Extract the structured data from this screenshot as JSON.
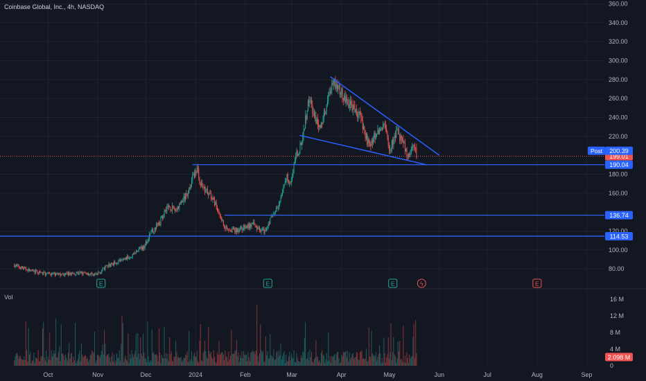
{
  "header": {
    "title": "Coinbase Global, Inc., 4h, NASDAQ"
  },
  "chart_data": {
    "type": "candlestick",
    "title": "Coinbase Global, Inc., 4h, NASDAQ",
    "price_axis": {
      "ticks": [
        "360.00",
        "340.00",
        "320.00",
        "300.00",
        "280.00",
        "260.00",
        "240.00",
        "220.00",
        "180.00",
        "160.00",
        "120.00",
        "100.00",
        "80.00"
      ],
      "tick_values": [
        360,
        340,
        320,
        300,
        280,
        260,
        240,
        220,
        180,
        160,
        120,
        100,
        80
      ],
      "range": [
        64,
        364
      ]
    },
    "volume_axis": {
      "label": "Vol",
      "ticks": [
        "16 M",
        "12 M",
        "8 M",
        "4 M",
        "0"
      ],
      "tick_values": [
        16,
        12,
        8,
        4,
        0
      ],
      "range_millions": [
        0,
        18
      ]
    },
    "time_axis": {
      "ticks": [
        "Oct",
        "Nov",
        "Dec",
        "2024",
        "Feb",
        "Mar",
        "Apr",
        "May",
        "Jun",
        "Jul",
        "Aug",
        "Sep"
      ],
      "tick_dates": [
        "2023-10-01",
        "2023-11-01",
        "2023-12-01",
        "2024-01-01",
        "2024-02-01",
        "2024-03-01",
        "2024-04-01",
        "2024-05-01",
        "2024-06-01",
        "2024-07-01",
        "2024-08-01",
        "2024-09-01"
      ]
    },
    "price_keypoints": [
      [
        "2023-09-10",
        84
      ],
      [
        "2023-09-20",
        78
      ],
      [
        "2023-09-28",
        75
      ],
      [
        "2023-10-10",
        74
      ],
      [
        "2023-10-20",
        76
      ],
      [
        "2023-10-31",
        74
      ],
      [
        "2023-11-08",
        84
      ],
      [
        "2023-11-20",
        92
      ],
      [
        "2023-11-30",
        104
      ],
      [
        "2023-12-04",
        118
      ],
      [
        "2023-12-10",
        130
      ],
      [
        "2023-12-14",
        146
      ],
      [
        "2023-12-20",
        142
      ],
      [
        "2023-12-27",
        160
      ],
      [
        "2023-12-30",
        176
      ],
      [
        "2024-01-02",
        186
      ],
      [
        "2024-01-04",
        170
      ],
      [
        "2024-01-10",
        158
      ],
      [
        "2024-01-14",
        146
      ],
      [
        "2024-01-19",
        125
      ],
      [
        "2024-01-25",
        120
      ],
      [
        "2024-02-01",
        124
      ],
      [
        "2024-02-06",
        127
      ],
      [
        "2024-02-10",
        122
      ],
      [
        "2024-02-13",
        120
      ],
      [
        "2024-02-17",
        133
      ],
      [
        "2024-02-22",
        148
      ],
      [
        "2024-02-27",
        178
      ],
      [
        "2024-02-29",
        171
      ],
      [
        "2024-03-04",
        200
      ],
      [
        "2024-03-07",
        212
      ],
      [
        "2024-03-12",
        262
      ],
      [
        "2024-03-15",
        240
      ],
      [
        "2024-03-19",
        230
      ],
      [
        "2024-03-25",
        270
      ],
      [
        "2024-03-27",
        280
      ],
      [
        "2024-04-02",
        262
      ],
      [
        "2024-04-07",
        252
      ],
      [
        "2024-04-13",
        240
      ],
      [
        "2024-04-18",
        210
      ],
      [
        "2024-04-22",
        222
      ],
      [
        "2024-04-28",
        232
      ],
      [
        "2024-05-01",
        206
      ],
      [
        "2024-05-06",
        225
      ],
      [
        "2024-05-10",
        210
      ],
      [
        "2024-05-13",
        197
      ],
      [
        "2024-05-16",
        215
      ],
      [
        "2024-05-18",
        200
      ]
    ],
    "trendlines": [
      {
        "from": [
          "2024-03-25",
          283
        ],
        "to": [
          "2024-06-01",
          200
        ]
      },
      {
        "from": [
          "2024-03-06",
          221
        ],
        "to": [
          "2024-05-24",
          190
        ]
      }
    ],
    "horizontal_levels": [
      {
        "price": 190.04,
        "label": "190.04",
        "start": "2023-12-30"
      },
      {
        "price": 136.74,
        "label": "136.74",
        "start": "2024-01-19"
      },
      {
        "price": 114.53,
        "label": "114.53",
        "start": "2023-09-01"
      }
    ],
    "current_price": {
      "price": 199.01,
      "label": "199.01"
    },
    "post_market": {
      "tag": "Post",
      "price": 200.39,
      "label": "200.39"
    },
    "current_volume": {
      "label": "2.098 M",
      "value_millions": 2.098
    },
    "events": [
      {
        "date": "2023-11-03",
        "type": "earnings",
        "glyph": "E",
        "color": "#26a69a"
      },
      {
        "date": "2024-02-15",
        "type": "earnings",
        "glyph": "E",
        "color": "#26a69a"
      },
      {
        "date": "2024-05-03",
        "type": "earnings",
        "glyph": "E",
        "color": "#26a69a"
      },
      {
        "date": "2024-05-21",
        "type": "dividend",
        "glyph": "ϟ",
        "color": "#ef5350"
      },
      {
        "date": "2024-08-01",
        "type": "earnings",
        "glyph": "E",
        "color": "#ef5350"
      }
    ],
    "colors": {
      "background": "#131722",
      "up": "#26a69a",
      "down": "#ef5350",
      "trendline": "#2962ff",
      "axis_text": "#b2b5be",
      "grid": "#1e222d"
    }
  }
}
